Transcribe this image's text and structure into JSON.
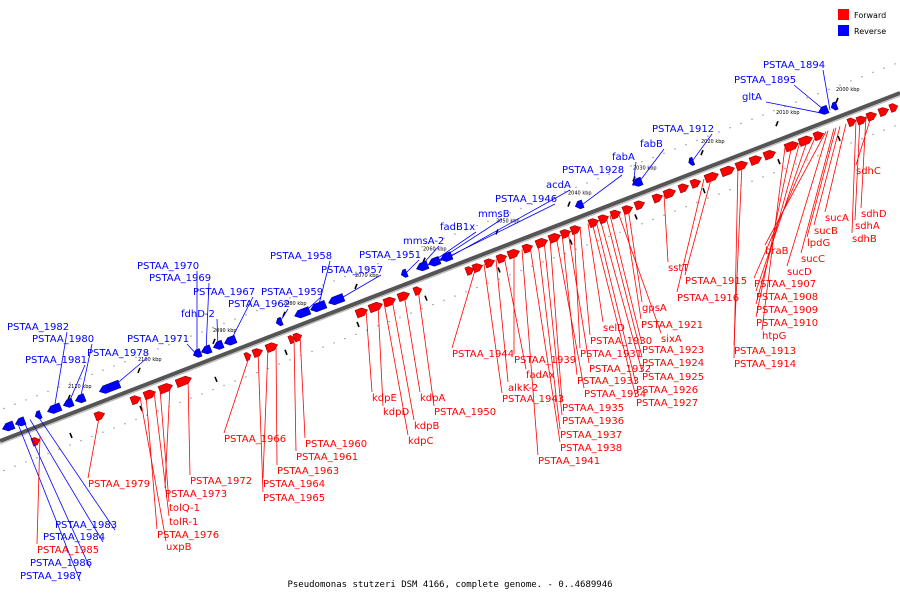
{
  "caption": "Pseudomonas stutzeri DSM 4166, complete genome. - 0..4689946",
  "legend": [
    {
      "label": "Forward",
      "color": "#ff0000"
    },
    {
      "label": "Reverse",
      "color": "#0000ff"
    }
  ],
  "colors": {
    "forward": "#ff0000",
    "reverse": "#0000ff",
    "axis": "#555555"
  },
  "kbp_ticks": [
    "2000 kbp",
    "2010 kbp",
    "2020 kbp",
    "2030 kbp",
    "2040 kbp",
    "2050 kbp",
    "2060 kbp",
    "2070 kbp",
    "2080 kbp",
    "2090 kbp",
    "2100 kbp",
    "2110 kbp"
  ],
  "reverse_labels": [
    "PSTAA_1894",
    "PSTAA_1895",
    "gltA",
    "PSTAA_1912",
    "fabB",
    "fabA",
    "PSTAA_1928",
    "acdA",
    "PSTAA_1946",
    "mmsB",
    "fadB1x",
    "mmsA-2",
    "PSTAA_1951",
    "PSTAA_1957",
    "PSTAA_1958",
    "PSTAA_1959",
    "PSTAA_1962",
    "PSTAA_1967",
    "fdhD-2",
    "PSTAA_1969",
    "PSTAA_1970",
    "PSTAA_1971",
    "PSTAA_1978",
    "PSTAA_1980",
    "PSTAA_1981",
    "PSTAA_1982",
    "PSTAA_1983",
    "PSTAA_1984",
    "PSTAA_1986",
    "PSTAA_1987"
  ],
  "forward_labels": [
    "sdhC",
    "sdhD",
    "sdhA",
    "sdhB",
    "sucA",
    "sucB",
    "sucC",
    "sucD",
    "lpdG",
    "braB",
    "PSTAA_1907",
    "PSTAA_1908",
    "PSTAA_1909",
    "PSTAA_1910",
    "htpG",
    "PSTAA_1913",
    "PSTAA_1914",
    "PSTAA_1915",
    "PSTAA_1916",
    "sstT",
    "PSTAA_1921",
    "PSTAA_1923",
    "PSTAA_1924",
    "PSTAA_1925",
    "PSTAA_1926",
    "PSTAA_1927",
    "gpsA",
    "sixA",
    "selD",
    "PSTAA_1930",
    "PSTAA_1931",
    "PSTAA_1932",
    "PSTAA_1933",
    "PSTAA_1934",
    "PSTAA_1935",
    "PSTAA_1936",
    "PSTAA_1937",
    "PSTAA_1938",
    "PSTAA_1941",
    "PSTAA_1939",
    "fadAx",
    "alkK-2",
    "PSTAA_1943",
    "PSTAA_1944",
    "PSTAA_1950",
    "kdpA",
    "kdpB",
    "kdpC",
    "kdpD",
    "kdpE",
    "PSTAA_1960",
    "PSTAA_1961",
    "PSTAA_1963",
    "PSTAA_1964",
    "PSTAA_1965",
    "PSTAA_1966",
    "PSTAA_1972",
    "PSTAA_1973",
    "tolQ-1",
    "tolR-1",
    "PSTAA_1976",
    "uxpB",
    "PSTAA_1979",
    "PSTAA_1985"
  ]
}
